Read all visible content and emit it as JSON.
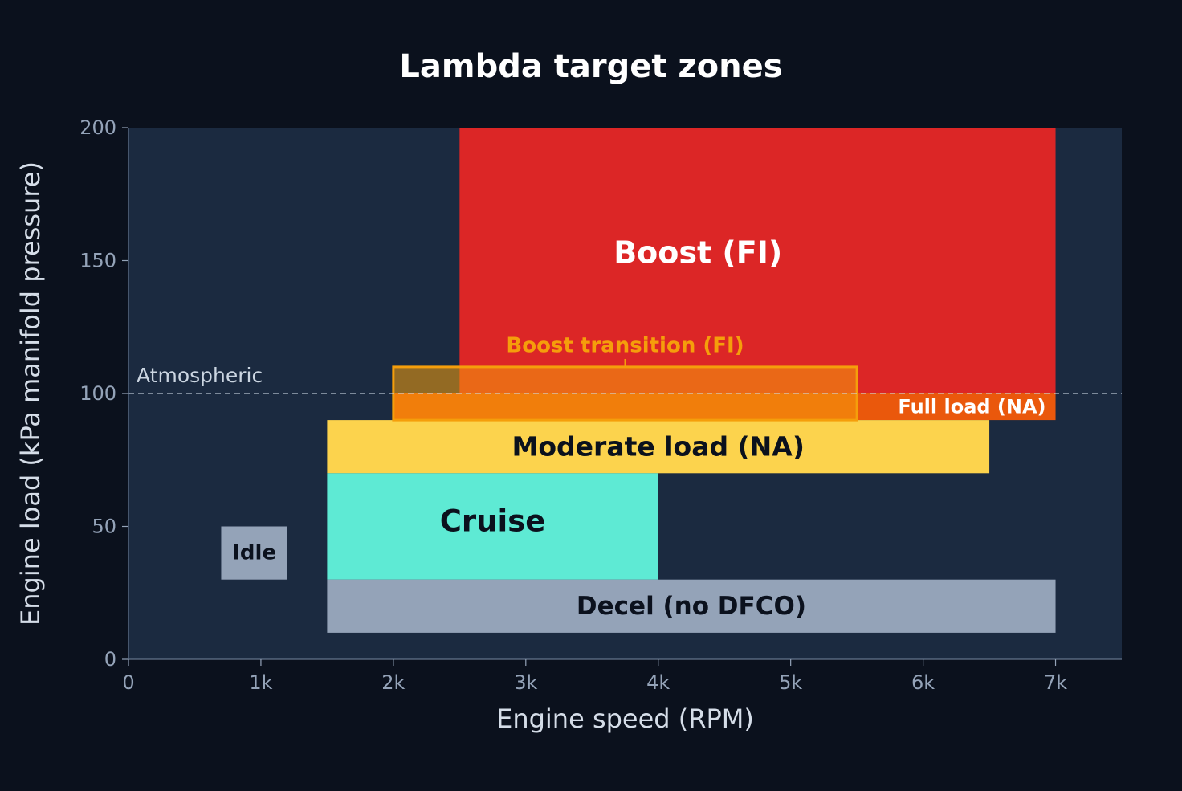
{
  "chart_data": {
    "type": "heatmap",
    "title": "Lambda target zones",
    "xlabel": "Engine speed (RPM)",
    "ylabel": "Engine load (kPa manifold pressure)",
    "xlim": [
      0,
      7500
    ],
    "ylim": [
      0,
      200
    ],
    "x_ticks": [
      {
        "value": 0,
        "label": "0"
      },
      {
        "value": 1000,
        "label": "1k"
      },
      {
        "value": 2000,
        "label": "2k"
      },
      {
        "value": 3000,
        "label": "3k"
      },
      {
        "value": 4000,
        "label": "4k"
      },
      {
        "value": 5000,
        "label": "5k"
      },
      {
        "value": 6000,
        "label": "6k"
      },
      {
        "value": 7000,
        "label": "7k"
      }
    ],
    "y_ticks": [
      {
        "value": 0,
        "label": "0"
      },
      {
        "value": 50,
        "label": "50"
      },
      {
        "value": 100,
        "label": "100"
      },
      {
        "value": 150,
        "label": "150"
      },
      {
        "value": 200,
        "label": "200"
      }
    ],
    "grid": false,
    "reference_line": {
      "y": 100,
      "label": "Atmospheric",
      "style": "dashed"
    },
    "zones": [
      {
        "name": "Boost (FI)",
        "rpm": [
          2500,
          7000
        ],
        "load": [
          100,
          200
        ],
        "color": "#dc2626",
        "text_color": "#ffffff"
      },
      {
        "name": "Full load (NA)",
        "rpm": [
          2000,
          7000
        ],
        "load": [
          90,
          100
        ],
        "color": "#ea580c",
        "text_color": "#ffffff"
      },
      {
        "name": "Moderate load (NA)",
        "rpm": [
          1500,
          6500
        ],
        "load": [
          70,
          90
        ],
        "color": "#fcd34d",
        "text_color": "#0b111d"
      },
      {
        "name": "Cruise",
        "rpm": [
          1500,
          4000
        ],
        "load": [
          30,
          70
        ],
        "color": "#5eead4",
        "text_color": "#0b111d"
      },
      {
        "name": "Decel (no DFCO)",
        "rpm": [
          1500,
          7000
        ],
        "load": [
          10,
          30
        ],
        "color": "#94a3b8",
        "text_color": "#0b111d"
      },
      {
        "name": "Idle",
        "rpm": [
          700,
          1200
        ],
        "load": [
          30,
          50
        ],
        "color": "#94a3b8",
        "text_color": "#0b111d"
      },
      {
        "name": "Boost transition (FI)",
        "rpm": [
          2000,
          5500
        ],
        "load": [
          90,
          110
        ],
        "color": "#f59e0b",
        "text_color": "#f59e0b"
      }
    ]
  }
}
